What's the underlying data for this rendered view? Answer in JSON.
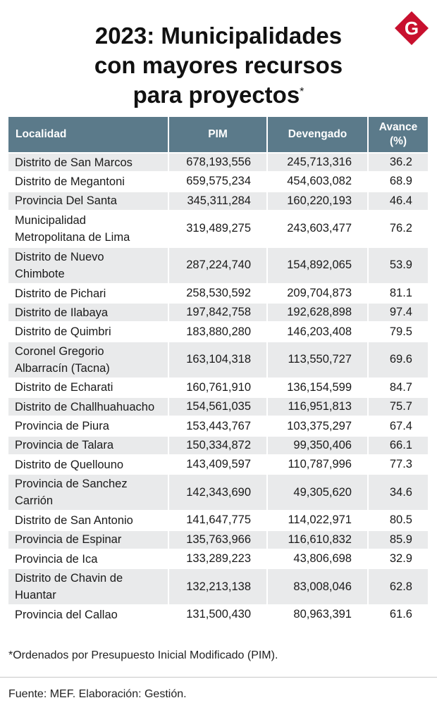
{
  "title": {
    "line1": "2023: Municipalidades",
    "line2": "con mayores recursos",
    "line3": "para proyectos",
    "mark": "*"
  },
  "logo": {
    "letter": "G",
    "color": "#c8102e"
  },
  "table": {
    "headers": [
      "Localidad",
      "PIM",
      "Devengado",
      "Avance",
      "(%)"
    ],
    "header_color": "#5b7a8a",
    "stripe_color": "#e9eaeb",
    "rows": [
      {
        "name": [
          "Distrito de San Marcos"
        ],
        "pim": "678,193,556",
        "devengado": "245,713,316",
        "avance": "36.2"
      },
      {
        "name": [
          "Distrito de Megantoni"
        ],
        "pim": "659,575,234",
        "devengado": "454,603,082",
        "avance": "68.9"
      },
      {
        "name": [
          "Provincia Del Santa"
        ],
        "pim": "345,311,284",
        "devengado": "160,220,193",
        "avance": "46.4"
      },
      {
        "name": [
          "Municipalidad",
          "Metropolitana de Lima"
        ],
        "pim": "319,489,275",
        "devengado": "243,603,477",
        "avance": "76.2"
      },
      {
        "name": [
          "Distrito de Nuevo",
          "Chimbote"
        ],
        "pim": "287,224,740",
        "devengado": "154,892,065",
        "avance": "53.9"
      },
      {
        "name": [
          "Distrito de Pichari"
        ],
        "pim": "258,530,592",
        "devengado": "209,704,873",
        "avance": "81.1"
      },
      {
        "name": [
          "Distrito de Ilabaya"
        ],
        "pim": "197,842,758",
        "devengado": "192,628,898",
        "avance": "97.4"
      },
      {
        "name": [
          "Distrito de Quimbri"
        ],
        "pim": "183,880,280",
        "devengado": "146,203,408",
        "avance": "79.5"
      },
      {
        "name": [
          "Coronel Gregorio",
          "Albarracín (Tacna)"
        ],
        "pim": "163,104,318",
        "devengado": "113,550,727",
        "avance": "69.6"
      },
      {
        "name": [
          "Distrito de Echarati"
        ],
        "pim": "160,761,910",
        "devengado": "136,154,599",
        "avance": "84.7"
      },
      {
        "name": [
          "Distrito de Challhuahuacho"
        ],
        "pim": "154,561,035",
        "devengado": "116,951,813",
        "avance": "75.7"
      },
      {
        "name": [
          "Provincia de Piura"
        ],
        "pim": "153,443,767",
        "devengado": "103,375,297",
        "avance": "67.4"
      },
      {
        "name": [
          "Provincia de Talara"
        ],
        "pim": "150,334,872",
        "devengado": "99,350,406",
        "avance": "66.1"
      },
      {
        "name": [
          "Distrito de Quellouno"
        ],
        "pim": "143,409,597",
        "devengado": "110,787,996",
        "avance": "77.3"
      },
      {
        "name": [
          "Provincia de Sanchez",
          "Carrión"
        ],
        "pim": "142,343,690",
        "devengado": "49,305,620",
        "avance": "34.6"
      },
      {
        "name": [
          "Distrito de San Antonio"
        ],
        "pim": "141,647,775",
        "devengado": "114,022,971",
        "avance": "80.5"
      },
      {
        "name": [
          "Provincia de Espinar"
        ],
        "pim": "135,763,966",
        "devengado": "116,610,832",
        "avance": "85.9"
      },
      {
        "name": [
          "Provincia de Ica"
        ],
        "pim": "133,289,223",
        "devengado": "43,806,698",
        "avance": "32.9"
      },
      {
        "name": [
          "Distrito de Chavin de",
          "Huantar"
        ],
        "pim": "132,213,138",
        "devengado": "83,008,046",
        "avance": "62.8"
      },
      {
        "name": [
          "Provincia del Callao"
        ],
        "pim": "131,500,430",
        "devengado": "80,963,391",
        "avance": "61.6"
      }
    ]
  },
  "note": "*Ordenados por Presupuesto Inicial Modificado (PIM).",
  "source": "Fuente: MEF. Elaboración: Gestión."
}
